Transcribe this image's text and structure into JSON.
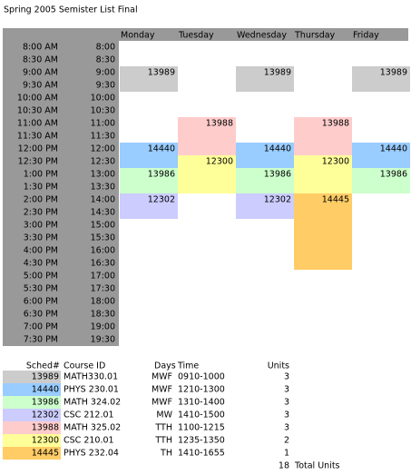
{
  "title": "Spring 2005   Semister List Final",
  "days": [
    "Monday",
    "Tuesday",
    "Wednesday",
    "Thursday",
    "Friday"
  ],
  "times": [
    {
      "ampm": "8:00 AM",
      "h24": "8:00"
    },
    {
      "ampm": "8:30 AM",
      "h24": "8:30"
    },
    {
      "ampm": "9:00 AM",
      "h24": "9:00"
    },
    {
      "ampm": "9:30 AM",
      "h24": "9:30"
    },
    {
      "ampm": "10:00 AM",
      "h24": "10:00"
    },
    {
      "ampm": "10:30 AM",
      "h24": "10:30"
    },
    {
      "ampm": "11:00 AM",
      "h24": "11:00"
    },
    {
      "ampm": "11:30 AM",
      "h24": "11:30"
    },
    {
      "ampm": "12:00 PM",
      "h24": "12:00"
    },
    {
      "ampm": "12:30 PM",
      "h24": "12:30"
    },
    {
      "ampm": "1:00 PM",
      "h24": "13:00"
    },
    {
      "ampm": "1:30 PM",
      "h24": "13:30"
    },
    {
      "ampm": "2:00 PM",
      "h24": "14:00"
    },
    {
      "ampm": "2:30 PM",
      "h24": "14:30"
    },
    {
      "ampm": "3:00 PM",
      "h24": "15:00"
    },
    {
      "ampm": "3:30 PM",
      "h24": "15:30"
    },
    {
      "ampm": "4:00 PM",
      "h24": "16:00"
    },
    {
      "ampm": "4:30 PM",
      "h24": "16:30"
    },
    {
      "ampm": "5:00 PM",
      "h24": "17:00"
    },
    {
      "ampm": "5:30 PM",
      "h24": "17:30"
    },
    {
      "ampm": "6:00 PM",
      "h24": "18:00"
    },
    {
      "ampm": "6:30 PM",
      "h24": "18:30"
    },
    {
      "ampm": "7:00 PM",
      "h24": "19:00"
    },
    {
      "ampm": "7:30 PM",
      "h24": "19:30"
    }
  ],
  "legend": {
    "headers": {
      "sched": "Sched#",
      "course": "Course ID",
      "days": "Days",
      "time": "Time",
      "units": "Units"
    },
    "total": "18",
    "total_label": "Total Units"
  },
  "courses": [
    {
      "sched": "13989",
      "course": "MATH330.01",
      "days": "MWF",
      "time": "0910-1000",
      "units": "3",
      "color": "#cccccc",
      "on": [
        "Monday",
        "Wednesday",
        "Friday"
      ],
      "from": "9:00",
      "to": "10:00"
    },
    {
      "sched": "14440",
      "course": "PHYS 230.01",
      "days": "MWF",
      "time": "1210-1300",
      "units": "3",
      "color": "#99ccff",
      "on": [
        "Monday",
        "Wednesday",
        "Friday"
      ],
      "from": "12:00",
      "to": "13:00"
    },
    {
      "sched": "13986",
      "course": "MATH 324.02",
      "days": "MWF",
      "time": "1310-1400",
      "units": "3",
      "color": "#ccffcc",
      "on": [
        "Monday",
        "Wednesday",
        "Friday"
      ],
      "from": "13:00",
      "to": "14:00"
    },
    {
      "sched": "12302",
      "course": "CSC 212.01",
      "days": "MW",
      "time": "1410-1500",
      "units": "3",
      "color": "#ccccff",
      "on": [
        "Monday",
        "Wednesday"
      ],
      "from": "14:00",
      "to": "15:00"
    },
    {
      "sched": "13988",
      "course": "MATH 325.02",
      "days": "TTH",
      "time": "1100-1215",
      "units": "3",
      "color": "#ffcccc",
      "on": [
        "Tuesday",
        "Thursday"
      ],
      "from": "11:00",
      "to": "12:30"
    },
    {
      "sched": "12300",
      "course": "CSC 210.01",
      "days": "TTH",
      "time": "1235-1350",
      "units": "2",
      "color": "#ffff99",
      "on": [
        "Tuesday",
        "Thursday"
      ],
      "from": "12:30",
      "to": "14:00"
    },
    {
      "sched": "14445",
      "course": "PHYS 232.04",
      "days": "TH",
      "time": "1410-1655",
      "units": "1",
      "color": "#ffcc66",
      "on": [
        "Thursday"
      ],
      "from": "14:00",
      "to": "17:00"
    }
  ]
}
